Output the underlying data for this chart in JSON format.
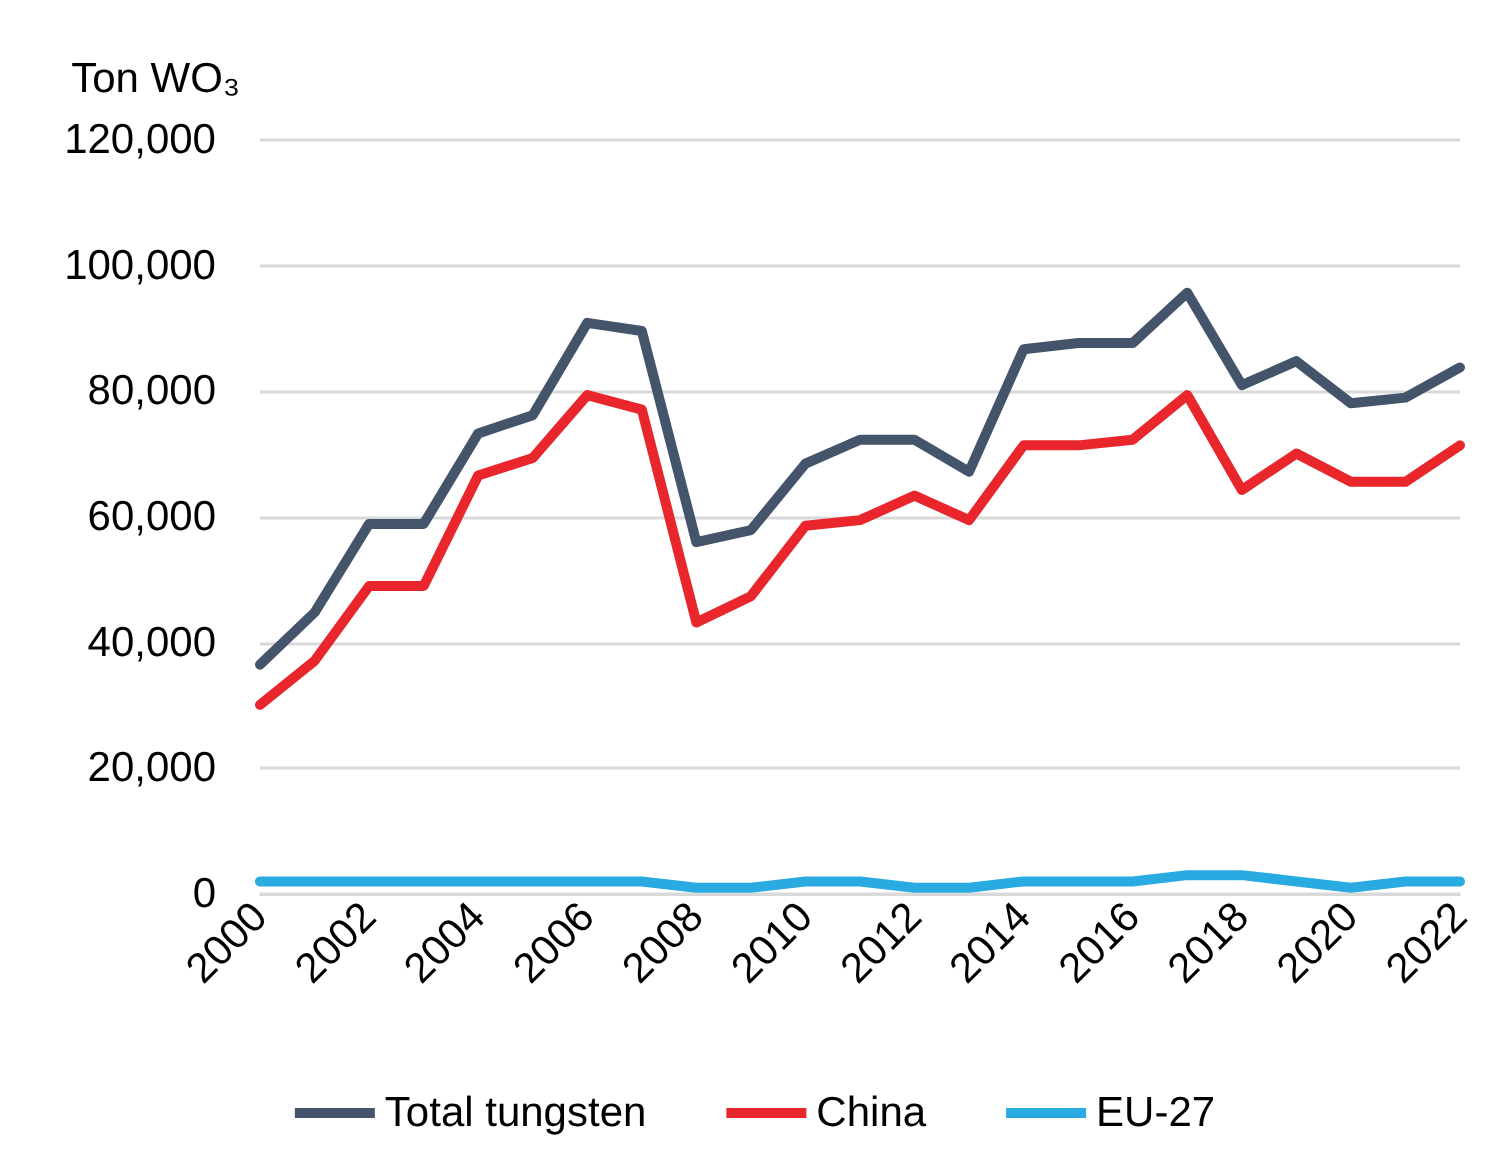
{
  "chart_data": {
    "type": "line",
    "ylabel": "Ton WO₃",
    "categories": [
      "2000",
      null,
      "2002",
      null,
      "2004",
      null,
      "2006",
      null,
      "2008",
      null,
      "2010",
      null,
      "2012",
      null,
      "2014",
      null,
      "2016",
      null,
      "2018",
      null,
      "2020",
      null,
      "2022"
    ],
    "series": [
      {
        "name": "Total tungsten",
        "color": "#44546a",
        "values": [
          36500,
          44800,
          58900,
          58900,
          73300,
          76200,
          90900,
          89600,
          56000,
          57900,
          68500,
          72300,
          72300,
          67200,
          86700,
          87700,
          87700,
          95700,
          81000,
          84800,
          78100,
          79000,
          83800
        ]
      },
      {
        "name": "China",
        "color": "#e8262b",
        "values": [
          30100,
          37100,
          49000,
          49000,
          66600,
          69400,
          79400,
          77100,
          43200,
          47400,
          58600,
          59500,
          63400,
          59500,
          71400,
          71400,
          72300,
          79400,
          64300,
          70100,
          65600,
          65600,
          71400
        ]
      },
      {
        "name": "EU-27",
        "color": "#29abe2",
        "values": [
          2000,
          2000,
          2000,
          2000,
          2000,
          2000,
          2000,
          2000,
          1000,
          1000,
          2000,
          2000,
          1000,
          1000,
          2000,
          2000,
          2000,
          3000,
          3000,
          2000,
          1000,
          2000,
          2000
        ]
      }
    ],
    "ylim": [
      0,
      120000
    ],
    "yticks": [
      0,
      {
        "value": 20000,
        "label": "20,000"
      },
      {
        "value": 40000,
        "label": "40,000"
      },
      {
        "value": 60000,
        "label": "60,000"
      },
      {
        "value": 80000,
        "label": "80,000"
      },
      {
        "value": 100000,
        "label": "100,000"
      },
      {
        "value": 120000,
        "label": "120,000"
      }
    ],
    "grid": "y",
    "legend": "bottom",
    "marker": "none",
    "line_style": "solid"
  }
}
